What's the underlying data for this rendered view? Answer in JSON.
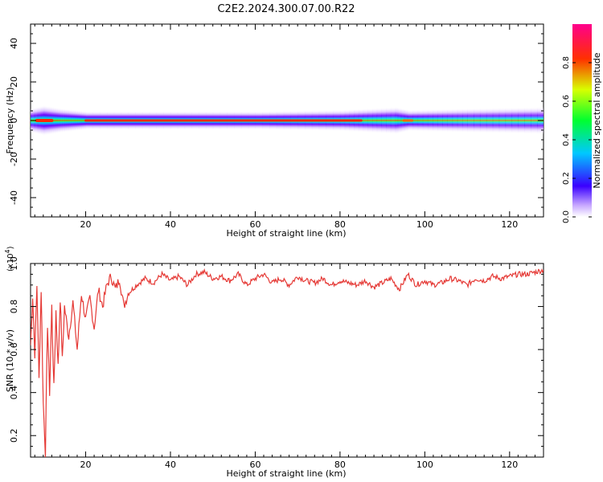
{
  "title": "C2E2.2024.300.07.00.R22",
  "chart_data": [
    {
      "type": "heatmap",
      "xlabel": "Height of straight line (km)",
      "ylabel": "Frequency (Hz)",
      "xlim": [
        7,
        128
      ],
      "ylim": [
        -50,
        50
      ],
      "xticks": [
        20,
        40,
        60,
        80,
        100,
        120
      ],
      "yticks": [
        -40,
        -20,
        0,
        20,
        40
      ],
      "colorbar": {
        "label": "Normalized spectral amplitude",
        "range": [
          0,
          1
        ],
        "ticks": [
          0.0,
          0.2,
          0.4,
          0.6,
          0.8
        ]
      },
      "band_center_hz": 0,
      "band_profile": [
        {
          "x": 7,
          "halfwidth_hz": 4,
          "peak": 0.55
        },
        {
          "x": 10,
          "halfwidth_hz": 5,
          "peak": 1.0
        },
        {
          "x": 14,
          "halfwidth_hz": 4,
          "peak": 0.9
        },
        {
          "x": 20,
          "halfwidth_hz": 3,
          "peak": 1.0
        },
        {
          "x": 40,
          "halfwidth_hz": 3,
          "peak": 1.0
        },
        {
          "x": 60,
          "halfwidth_hz": 3,
          "peak": 0.95
        },
        {
          "x": 80,
          "halfwidth_hz": 3.5,
          "peak": 0.85
        },
        {
          "x": 93,
          "halfwidth_hz": 4.5,
          "peak": 0.75
        },
        {
          "x": 96,
          "halfwidth_hz": 3.5,
          "peak": 0.85
        },
        {
          "x": 110,
          "halfwidth_hz": 4,
          "peak": 0.6
        },
        {
          "x": 128,
          "halfwidth_hz": 4.5,
          "peak": 0.6
        }
      ]
    },
    {
      "type": "line",
      "xlabel": "Height of straight line (km)",
      "ylabel": "SNR (10 * v/v)",
      "y_multiplier_label": "(x10",
      "y_multiplier_exp": "4",
      "y_multiplier_close": ")",
      "xlim": [
        7,
        128
      ],
      "ylim": [
        0.1,
        1.0
      ],
      "xticks": [
        20,
        40,
        60,
        80,
        100,
        120
      ],
      "yticks": [
        0.2,
        0.4,
        0.6,
        0.8,
        1.0
      ],
      "color": "#e53935",
      "series": [
        {
          "x": [
            7,
            7.5,
            8,
            8.5,
            9,
            9.5,
            10,
            10.5,
            11,
            11.5,
            12,
            12.5,
            13,
            13.5,
            14,
            14.5,
            15,
            16,
            17,
            18,
            19,
            20,
            21,
            22,
            23,
            24,
            25,
            26,
            27,
            28,
            29,
            30,
            32,
            34,
            36,
            38,
            40,
            42,
            44,
            46,
            48,
            50,
            52,
            54,
            56,
            58,
            60,
            62,
            64,
            66,
            68,
            70,
            72,
            74,
            76,
            78,
            80,
            82,
            84,
            86,
            88,
            90,
            92,
            94,
            96,
            98,
            100,
            102,
            104,
            106,
            108,
            110,
            112,
            114,
            116,
            118,
            120,
            122,
            124,
            126,
            128
          ],
          "y": [
            0.62,
            0.85,
            0.58,
            0.9,
            0.46,
            0.88,
            0.35,
            0.12,
            0.72,
            0.4,
            0.8,
            0.42,
            0.78,
            0.52,
            0.84,
            0.55,
            0.8,
            0.66,
            0.82,
            0.6,
            0.86,
            0.74,
            0.84,
            0.7,
            0.88,
            0.8,
            0.9,
            0.94,
            0.88,
            0.93,
            0.8,
            0.86,
            0.9,
            0.93,
            0.91,
            0.95,
            0.92,
            0.94,
            0.9,
            0.95,
            0.96,
            0.93,
            0.94,
            0.92,
            0.95,
            0.9,
            0.93,
            0.95,
            0.91,
            0.93,
            0.9,
            0.94,
            0.92,
            0.91,
            0.93,
            0.9,
            0.92,
            0.91,
            0.9,
            0.92,
            0.89,
            0.91,
            0.93,
            0.88,
            0.95,
            0.9,
            0.92,
            0.9,
            0.91,
            0.93,
            0.92,
            0.9,
            0.93,
            0.92,
            0.94,
            0.93,
            0.94,
            0.95,
            0.95,
            0.96,
            0.97
          ]
        }
      ]
    }
  ]
}
